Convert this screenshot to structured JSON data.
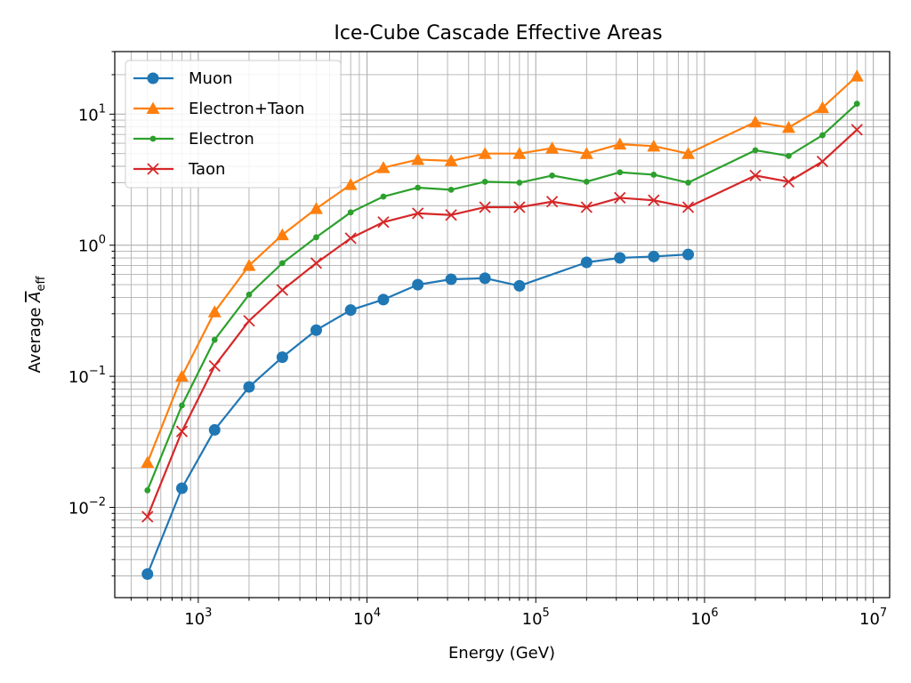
{
  "chart_data": {
    "type": "line",
    "title": "Ice-Cube Cascade Effective Areas",
    "xlabel": "Energy (GeV)",
    "ylabel_prefix": "Average ",
    "ylabel_symbol": "A",
    "ylabel_subscript": "eff",
    "xscale": "log",
    "yscale": "log",
    "xlim": [
      320,
      12500000
    ],
    "ylim": [
      0.00205,
      30
    ],
    "grid": true,
    "legend_position": "top-left",
    "x_ticks": [
      {
        "value": 1000,
        "mantissa": "10",
        "exponent": "3"
      },
      {
        "value": 10000,
        "mantissa": "10",
        "exponent": "4"
      },
      {
        "value": 100000,
        "mantissa": "10",
        "exponent": "5"
      },
      {
        "value": 1000000,
        "mantissa": "10",
        "exponent": "6"
      },
      {
        "value": 10000000,
        "mantissa": "10",
        "exponent": "7"
      }
    ],
    "y_ticks": [
      {
        "value": 0.01,
        "mantissa": "10",
        "exponent": "−2"
      },
      {
        "value": 0.1,
        "mantissa": "10",
        "exponent": "−1"
      },
      {
        "value": 1,
        "mantissa": "10",
        "exponent": "0"
      },
      {
        "value": 10,
        "mantissa": "10",
        "exponent": "1"
      }
    ],
    "series": [
      {
        "name": "Muon",
        "color": "#1f77b4",
        "marker": "circle",
        "x": [
          500,
          800,
          1250,
          2000,
          3150,
          5000,
          8000,
          12500,
          20000,
          31500,
          50000,
          80000,
          200000,
          315000,
          500000,
          800000
        ],
        "y": [
          0.0031,
          0.014,
          0.039,
          0.083,
          0.14,
          0.225,
          0.32,
          0.385,
          0.5,
          0.55,
          0.56,
          0.49,
          0.74,
          0.8,
          0.82,
          0.85
        ]
      },
      {
        "name": "Electron+Taon",
        "color": "#ff7f0e",
        "marker": "triangle",
        "x": [
          500,
          800,
          1250,
          2000,
          3150,
          5000,
          8000,
          12500,
          20000,
          31500,
          50000,
          80000,
          125000,
          200000,
          315000,
          500000,
          800000,
          2000000,
          3150000,
          5000000,
          8000000
        ],
        "y": [
          0.022,
          0.1,
          0.31,
          0.7,
          1.2,
          1.9,
          2.9,
          3.9,
          4.5,
          4.4,
          5.0,
          5.0,
          5.5,
          5.0,
          5.9,
          5.7,
          5.0,
          8.7,
          7.9,
          11.2,
          19.5
        ]
      },
      {
        "name": "Electron",
        "color": "#2ca02c",
        "marker": "dot",
        "x": [
          500,
          800,
          1250,
          2000,
          3150,
          5000,
          8000,
          12500,
          20000,
          31500,
          50000,
          80000,
          125000,
          200000,
          315000,
          500000,
          800000,
          2000000,
          3150000,
          5000000,
          8000000
        ],
        "y": [
          0.0135,
          0.06,
          0.19,
          0.42,
          0.73,
          1.15,
          1.78,
          2.35,
          2.75,
          2.65,
          3.05,
          3.0,
          3.4,
          3.05,
          3.6,
          3.45,
          3.0,
          5.3,
          4.8,
          6.9,
          12.0
        ]
      },
      {
        "name": "Taon",
        "color": "#d62728",
        "marker": "x",
        "x": [
          500,
          800,
          1250,
          2000,
          3150,
          5000,
          8000,
          12500,
          20000,
          31500,
          50000,
          80000,
          125000,
          200000,
          315000,
          500000,
          800000,
          2000000,
          3150000,
          5000000,
          8000000
        ],
        "y": [
          0.0085,
          0.038,
          0.12,
          0.265,
          0.455,
          0.73,
          1.13,
          1.5,
          1.75,
          1.7,
          1.95,
          1.95,
          2.15,
          1.95,
          2.3,
          2.2,
          1.95,
          3.4,
          3.05,
          4.35,
          7.6
        ]
      }
    ]
  }
}
